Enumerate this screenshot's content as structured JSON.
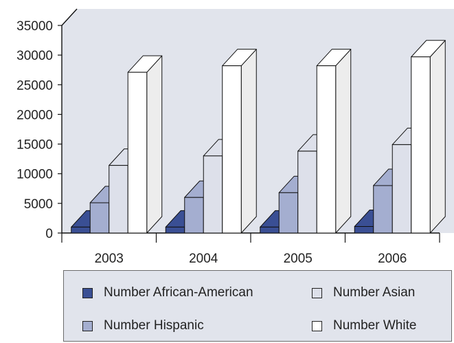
{
  "chart_data": {
    "type": "bar",
    "categories": [
      "2003",
      "2004",
      "2005",
      "2006"
    ],
    "series": [
      {
        "name": "Number African-American",
        "color": "#3a4f94",
        "values": [
          1000,
          1000,
          1000,
          1100
        ]
      },
      {
        "name": "Number Hispanic",
        "color": "#a4aed0",
        "values": [
          5100,
          6000,
          6800,
          8000
        ]
      },
      {
        "name": "Number Asian",
        "color": "#dde0ea",
        "values": [
          11400,
          13000,
          13800,
          14900
        ]
      },
      {
        "name": "Number White",
        "color": "#ffffff",
        "values": [
          27100,
          28200,
          28200,
          29700
        ]
      }
    ],
    "yticks": [
      "0",
      "5000",
      "10000",
      "15000",
      "20000",
      "25000",
      "30000",
      "35000"
    ],
    "ylim": [
      0,
      35000
    ],
    "title": "",
    "xlabel": "",
    "ylabel": "",
    "grid": false,
    "legend_position": "bottom",
    "background": "#e1e4ec"
  },
  "legend": {
    "items": [
      {
        "label": "Number African-American",
        "color": "#3a4f94"
      },
      {
        "label": "Number Asian",
        "color": "#dde0ea"
      },
      {
        "label": "Number Hispanic",
        "color": "#a4aed0"
      },
      {
        "label": "Number White",
        "color": "#ffffff"
      }
    ]
  }
}
